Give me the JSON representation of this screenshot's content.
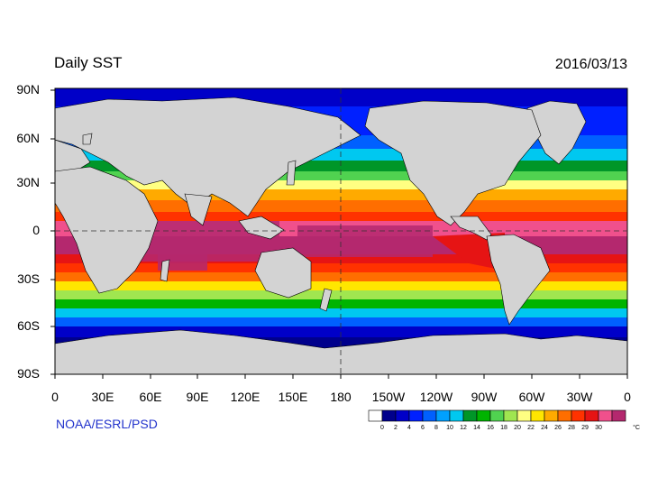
{
  "header": {
    "title": "Daily SST",
    "date": "2016/03/13"
  },
  "map": {
    "lat_labels": [
      "90N",
      "60N",
      "30N",
      "0",
      "30S",
      "60S",
      "90S"
    ],
    "lon_labels": [
      "0",
      "30E",
      "60E",
      "90E",
      "120E",
      "150E",
      "180",
      "150W",
      "120W",
      "90W",
      "60W",
      "30W",
      "0"
    ],
    "land_color": "#d3d3d3"
  },
  "colorbar": {
    "ticks": [
      "0",
      "2",
      "4",
      "6",
      "8",
      "10",
      "12",
      "14",
      "16",
      "18",
      "20",
      "22",
      "24",
      "26",
      "28",
      "29",
      "30"
    ],
    "unit": "°C",
    "colors": [
      "#ffffff",
      "#00008c",
      "#0000c8",
      "#0020ff",
      "#0060ff",
      "#00a0ff",
      "#00c8f0",
      "#009628",
      "#00b400",
      "#50d250",
      "#a0e650",
      "#ffff82",
      "#ffe600",
      "#ffaa00",
      "#ff6e00",
      "#ff3200",
      "#e61414",
      "#f0508c",
      "#b4286e"
    ]
  },
  "footer": {
    "credit": "NOAA/ESRL/PSD"
  }
}
